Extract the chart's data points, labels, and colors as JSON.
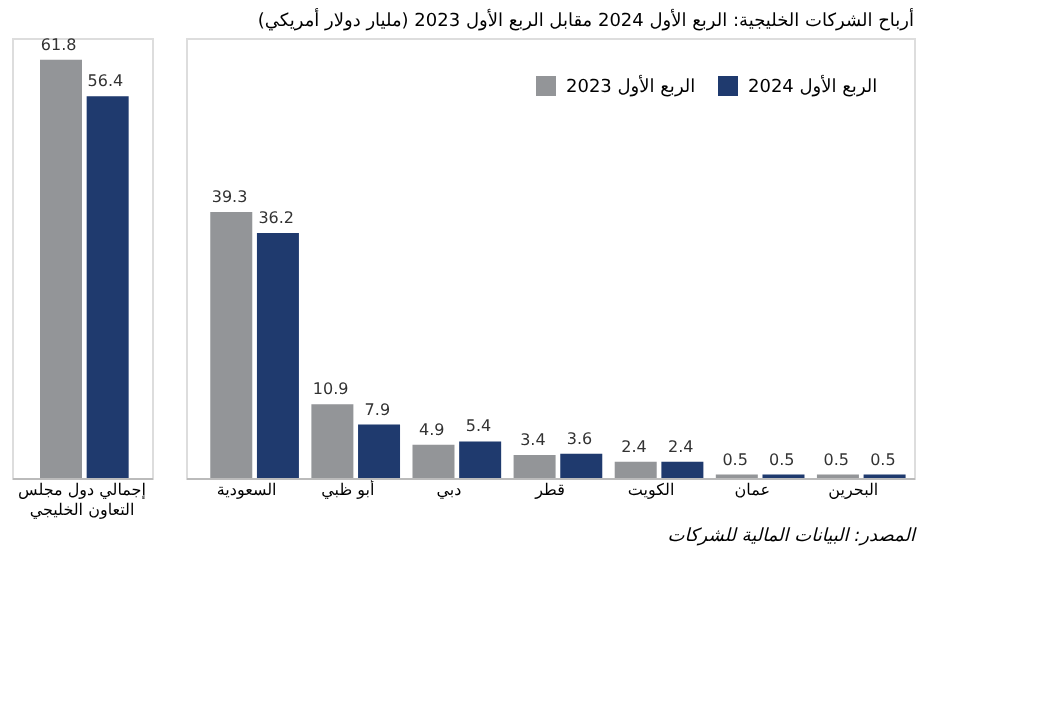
{
  "chart_data": [
    {
      "type": "bar",
      "categories": [
        "إجمالي دول مجلس التعاون الخليجي"
      ],
      "data_labels": true,
      "legend": false,
      "series": [
        {
          "color": "#939598",
          "values": [
            61.8
          ]
        },
        {
          "color": "#1f3a6e",
          "values": [
            56.4
          ]
        }
      ]
    },
    {
      "type": "bar",
      "title": "أرباح الشركات الخليجية: الربع الأول 2024 مقابل الربع الأول 2023 (مليار دولار أمريكي)",
      "categories": [
        "السعودية",
        "أبو ظبي",
        "دبي",
        "قطر",
        "الكويت",
        "عمان",
        "البحرين"
      ],
      "data_labels": true,
      "legend": "top right",
      "annotations": [
        "المصدر: البيانات المالية للشركات"
      ],
      "series": [
        {
          "name": "الربع الأول 2023",
          "color": "#939598",
          "values": [
            39.3,
            10.9,
            4.9,
            3.4,
            2.4,
            0.5,
            0.5
          ]
        },
        {
          "name": "الربع الأول 2024",
          "color": "#1f3a6e",
          "values": [
            36.2,
            7.9,
            5.4,
            3.6,
            2.4,
            0.5,
            0.5
          ]
        }
      ]
    }
  ]
}
